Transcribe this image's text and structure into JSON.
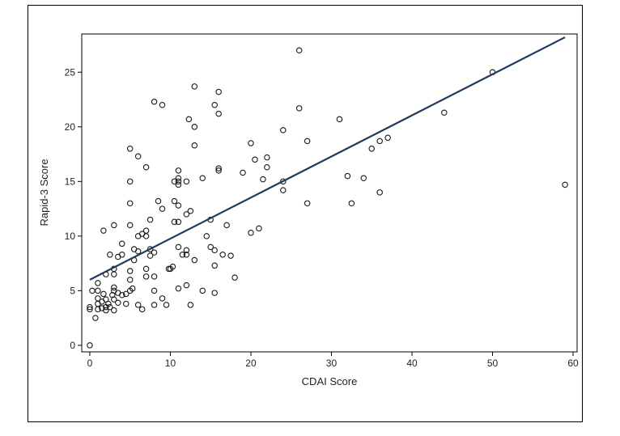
{
  "chart_data": {
    "type": "scatter",
    "title": "",
    "xlabel": "CDAI Score",
    "ylabel": "Rapid-3 Score",
    "xlim": [
      -1,
      60.5
    ],
    "ylim": [
      -0.6,
      28.5
    ],
    "xticks": [
      "0",
      "10",
      "20",
      "30",
      "40",
      "50",
      "60"
    ],
    "yticks": [
      "0",
      "5",
      "10",
      "15",
      "20",
      "25"
    ],
    "grid": false,
    "legend": "none",
    "colors": {
      "points": "#1a1a1a",
      "fit_line": "#1f3b5c"
    },
    "fit_line": {
      "x": [
        0,
        59
      ],
      "y": [
        6.0,
        28.2
      ]
    },
    "points": [
      [
        0,
        0
      ],
      [
        0,
        3.3
      ],
      [
        0,
        3.5
      ],
      [
        0.3,
        5
      ],
      [
        0.7,
        2.5
      ],
      [
        1,
        3.3
      ],
      [
        1,
        3.8
      ],
      [
        1,
        4.3
      ],
      [
        1,
        5
      ],
      [
        1,
        5.7
      ],
      [
        1.5,
        3.4
      ],
      [
        1.5,
        4
      ],
      [
        1.7,
        4.7
      ],
      [
        1.7,
        10.5
      ],
      [
        2,
        3.2
      ],
      [
        2,
        3.5
      ],
      [
        2,
        4.2
      ],
      [
        2,
        6.5
      ],
      [
        2.3,
        3.8
      ],
      [
        2.5,
        3.5
      ],
      [
        2.5,
        8.3
      ],
      [
        2.8,
        4.6
      ],
      [
        3,
        3.2
      ],
      [
        3,
        4.2
      ],
      [
        3,
        5
      ],
      [
        3,
        5.3
      ],
      [
        3,
        6.5
      ],
      [
        3,
        7
      ],
      [
        3,
        11
      ],
      [
        3.5,
        3.9
      ],
      [
        3.5,
        4.8
      ],
      [
        3.5,
        8.1
      ],
      [
        4,
        4.6
      ],
      [
        4,
        8.3
      ],
      [
        4,
        9.3
      ],
      [
        4.5,
        3.8
      ],
      [
        4.5,
        4.7
      ],
      [
        5,
        5
      ],
      [
        5,
        6
      ],
      [
        5,
        6.8
      ],
      [
        5,
        11
      ],
      [
        5,
        13
      ],
      [
        5,
        15
      ],
      [
        5,
        18
      ],
      [
        5.3,
        5.2
      ],
      [
        5.5,
        8.8
      ],
      [
        5.5,
        7.8
      ],
      [
        6,
        3.7
      ],
      [
        6,
        8.6
      ],
      [
        6,
        10
      ],
      [
        6,
        17.3
      ],
      [
        6.5,
        3.3
      ],
      [
        6.5,
        10.2
      ],
      [
        7,
        6.3
      ],
      [
        7,
        7
      ],
      [
        7,
        10
      ],
      [
        7,
        10.5
      ],
      [
        7,
        16.3
      ],
      [
        7.5,
        8.2
      ],
      [
        7.5,
        8.8
      ],
      [
        7.5,
        11.5
      ],
      [
        8,
        3.7
      ],
      [
        8,
        5
      ],
      [
        8,
        6.3
      ],
      [
        8,
        8.5
      ],
      [
        8,
        22.3
      ],
      [
        8.5,
        13.2
      ],
      [
        9,
        4.3
      ],
      [
        9,
        12.5
      ],
      [
        9,
        22
      ],
      [
        9.5,
        3.7
      ],
      [
        9.8,
        7
      ],
      [
        10,
        7
      ],
      [
        10.3,
        7.2
      ],
      [
        10.5,
        11.3
      ],
      [
        10.5,
        13.2
      ],
      [
        10.5,
        15
      ],
      [
        11,
        5.2
      ],
      [
        11,
        9
      ],
      [
        11,
        11.3
      ],
      [
        11,
        12.8
      ],
      [
        11,
        14.7
      ],
      [
        11,
        15
      ],
      [
        11,
        15.3
      ],
      [
        11,
        16
      ],
      [
        11.5,
        8.3
      ],
      [
        12,
        5.5
      ],
      [
        12,
        8.3
      ],
      [
        12,
        8.7
      ],
      [
        12,
        12
      ],
      [
        12,
        15
      ],
      [
        12.3,
        20.7
      ],
      [
        12.5,
        3.7
      ],
      [
        12.5,
        12.3
      ],
      [
        13,
        7.8
      ],
      [
        13,
        18.3
      ],
      [
        13,
        20
      ],
      [
        13,
        23.7
      ],
      [
        14,
        5
      ],
      [
        14,
        15.3
      ],
      [
        14.5,
        10
      ],
      [
        15,
        9
      ],
      [
        15,
        11.5
      ],
      [
        15.5,
        4.8
      ],
      [
        15.5,
        7.3
      ],
      [
        15.5,
        8.7
      ],
      [
        15.5,
        22
      ],
      [
        16,
        16
      ],
      [
        16,
        16.2
      ],
      [
        16,
        21.2
      ],
      [
        16,
        23.2
      ],
      [
        16.5,
        8.3
      ],
      [
        17,
        11
      ],
      [
        17.5,
        8.2
      ],
      [
        18,
        6.2
      ],
      [
        19,
        15.8
      ],
      [
        20,
        10.3
      ],
      [
        20,
        18.5
      ],
      [
        20.5,
        17
      ],
      [
        21,
        10.7
      ],
      [
        21.5,
        15.2
      ],
      [
        22,
        16.3
      ],
      [
        22,
        17.2
      ],
      [
        24,
        14.2
      ],
      [
        24,
        15
      ],
      [
        24,
        19.7
      ],
      [
        26,
        21.7
      ],
      [
        26,
        27
      ],
      [
        27,
        13
      ],
      [
        27,
        18.7
      ],
      [
        31,
        20.7
      ],
      [
        32,
        15.5
      ],
      [
        32.5,
        13
      ],
      [
        34,
        15.3
      ],
      [
        35,
        18
      ],
      [
        36,
        14
      ],
      [
        36,
        18.7
      ],
      [
        37,
        19
      ],
      [
        44,
        21.3
      ],
      [
        50,
        25
      ],
      [
        59,
        14.7
      ]
    ]
  }
}
